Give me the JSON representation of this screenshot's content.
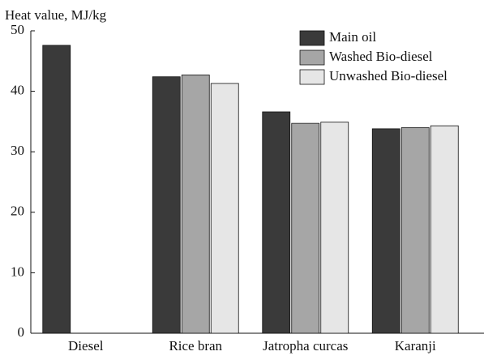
{
  "chart_data": {
    "type": "bar",
    "y_label": "Heat value, MJ/kg",
    "categories": [
      "Diesel",
      "Rice bran",
      "Jatropha curcas",
      "Karanji"
    ],
    "series": [
      {
        "name": "Main oil",
        "color": "#3a3a3a",
        "values": [
          47.6,
          42.4,
          36.6,
          33.8
        ]
      },
      {
        "name": "Washed Bio-diesel",
        "color": "#a6a6a6",
        "values": [
          0,
          42.7,
          34.7,
          34.0
        ]
      },
      {
        "name": "Unwashed Bio-diesel",
        "color": "#e6e6e6",
        "values": [
          0,
          41.3,
          34.9,
          34.3
        ]
      }
    ],
    "ylim": [
      0,
      50
    ],
    "yticks": [
      0,
      10,
      20,
      30,
      40,
      50
    ],
    "legend": "upper right"
  }
}
